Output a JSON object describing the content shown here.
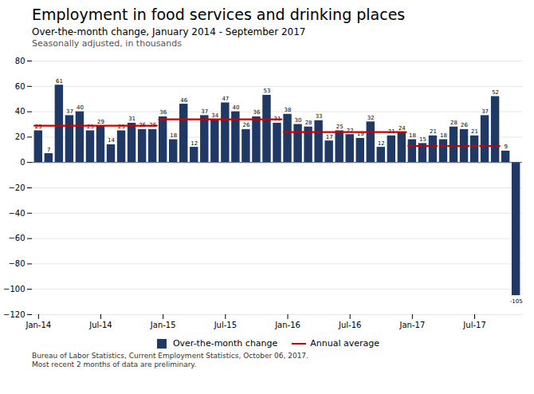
{
  "chart_data": {
    "type": "bar",
    "title": "Employment in food services and drinking places",
    "subtitle": "Over-the-month change, January 2014 - September 2017",
    "subtitle2": "Seasonally adjusted, in thousands",
    "footnote": "Bureau of Labor Statistics, Current Employment Statistics, October 06, 2017.\nMost recent 2 months of data are preliminary.",
    "categories": [
      "Jan-14",
      null,
      null,
      null,
      null,
      null,
      "Jul-14",
      null,
      null,
      null,
      null,
      null,
      "Jan-15",
      null,
      null,
      null,
      null,
      null,
      "Jul-15",
      null,
      null,
      null,
      null,
      null,
      "Jan-16",
      null,
      null,
      null,
      null,
      null,
      "Jul-16",
      null,
      null,
      null,
      null,
      null,
      "Jan-17",
      null,
      null,
      null,
      null,
      null,
      "Jul-17",
      null,
      null,
      null,
      null
    ],
    "series": [
      {
        "name": "Over-the-month change",
        "type": "bar",
        "color": "#1F3864",
        "values": [
          25,
          7,
          61,
          37,
          40,
          25,
          29,
          14,
          25,
          31,
          26,
          26,
          36,
          18,
          46,
          12,
          37,
          34,
          47,
          40,
          26,
          36,
          53,
          31,
          38,
          30,
          28,
          33,
          17,
          25,
          22,
          19,
          32,
          12,
          21,
          24,
          18,
          15,
          21,
          18,
          28,
          26,
          21,
          37,
          52,
          9,
          -105
        ]
      },
      {
        "name": "Annual average",
        "type": "line",
        "color": "#CC0000",
        "line_style": "solid",
        "values": [
          29,
          29,
          29,
          29,
          29,
          29,
          29,
          29,
          29,
          29,
          29,
          29,
          34,
          34,
          34,
          34,
          34,
          34,
          34,
          34,
          34,
          34,
          34,
          34,
          24,
          24,
          24,
          24,
          24,
          24,
          24,
          24,
          24,
          24,
          24,
          24,
          null,
          null,
          null,
          null,
          null,
          null,
          null,
          null,
          null,
          null,
          null
        ]
      },
      {
        "name": "Annual average",
        "type": "line",
        "color": "#CC0000",
        "line_style": "dashed",
        "values": [
          null,
          null,
          null,
          null,
          null,
          null,
          null,
          null,
          null,
          null,
          null,
          null,
          null,
          null,
          null,
          null,
          null,
          null,
          null,
          null,
          null,
          null,
          null,
          null,
          null,
          null,
          null,
          null,
          null,
          null,
          null,
          null,
          null,
          null,
          null,
          null,
          13,
          13,
          13,
          13,
          13,
          13,
          13,
          13,
          13,
          null,
          null
        ]
      }
    ],
    "ylim": [
      -120,
      80
    ],
    "yticks": [
      -120,
      -100,
      -80,
      -60,
      -40,
      -20,
      0,
      20,
      40,
      60,
      80
    ],
    "grid": true,
    "data_labels": true,
    "legend": "bottom"
  }
}
